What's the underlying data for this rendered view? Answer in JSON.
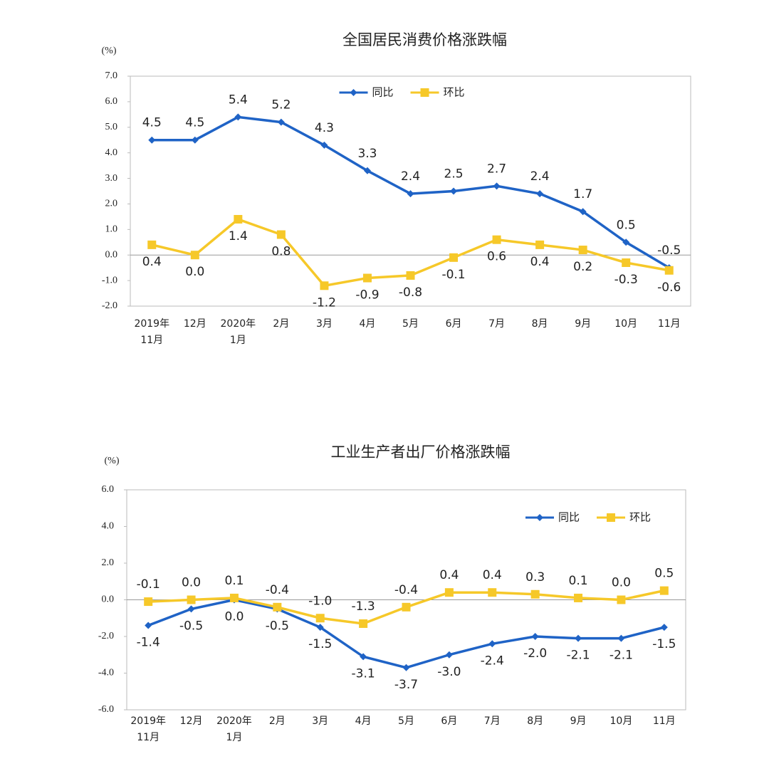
{
  "chart_data": [
    {
      "type": "line",
      "title": "全国居民消费价格涨跌幅",
      "ylabel": "(%)",
      "categories": [
        "2019年\n11月",
        "12月",
        "2020年\n1月",
        "2月",
        "3月",
        "4月",
        "5月",
        "6月",
        "7月",
        "8月",
        "9月",
        "10月",
        "11月"
      ],
      "series": [
        {
          "name": "同比",
          "color": "#1f63c6",
          "marker": "diamond",
          "values": [
            4.5,
            4.5,
            5.4,
            5.2,
            4.3,
            3.3,
            2.4,
            2.5,
            2.7,
            2.4,
            1.7,
            0.5,
            -0.5
          ],
          "value_labels": [
            "4.5",
            "4.5",
            "5.4",
            "5.2",
            "4.3",
            "3.3",
            "2.4",
            "2.5",
            "2.7",
            "2.4",
            "1.7",
            "0.5",
            "-0.5"
          ]
        },
        {
          "name": "环比",
          "color": "#f6c829",
          "marker": "square",
          "values": [
            0.4,
            0.0,
            1.4,
            0.8,
            -1.2,
            -0.9,
            -0.8,
            -0.1,
            0.6,
            0.4,
            0.2,
            -0.3,
            -0.6
          ],
          "value_labels": [
            "0.4",
            "0.0",
            "1.4",
            "0.8",
            "-1.2",
            "-0.9",
            "-0.8",
            "-0.1",
            "0.6",
            "0.4",
            "0.2",
            "-0.3",
            "-0.6"
          ]
        }
      ],
      "ylim": [
        -2,
        7
      ],
      "yticks": [
        {
          "value": -2,
          "label": "-2.0"
        },
        {
          "value": -1,
          "label": "-1.0"
        },
        {
          "value": 0,
          "label": "0.0"
        },
        {
          "value": 1,
          "label": "1.0"
        },
        {
          "value": 2,
          "label": "2.0"
        },
        {
          "value": 3,
          "label": "3.0"
        },
        {
          "value": 4,
          "label": "4.0"
        },
        {
          "value": 5,
          "label": "5.0"
        },
        {
          "value": 6,
          "label": "6.0"
        },
        {
          "value": 7,
          "label": "7.0"
        }
      ],
      "grid": false,
      "legend": "upper center"
    },
    {
      "type": "line",
      "title": "工业生产者出厂价格涨跌幅",
      "ylabel": "(%)",
      "categories": [
        "2019年\n11月",
        "12月",
        "2020年\n1月",
        "2月",
        "3月",
        "4月",
        "5月",
        "6月",
        "7月",
        "8月",
        "9月",
        "10月",
        "11月"
      ],
      "series": [
        {
          "name": "同比",
          "color": "#1f63c6",
          "marker": "diamond",
          "values": [
            -1.4,
            -0.5,
            0.0,
            -0.5,
            -1.5,
            -3.1,
            -3.7,
            -3.0,
            -2.4,
            -2.0,
            -2.1,
            -2.1,
            -1.5
          ],
          "value_labels": [
            "-1.4",
            "-0.5",
            "0.0",
            "-0.5",
            "-1.5",
            "-3.1",
            "-3.7",
            "-3.0",
            "-2.4",
            "-2.0",
            "-2.1",
            "-2.1",
            "-1.5"
          ]
        },
        {
          "name": "环比",
          "color": "#f6c829",
          "marker": "square",
          "values": [
            -0.1,
            0.0,
            0.1,
            -0.4,
            -1.0,
            -1.3,
            -0.4,
            0.4,
            0.4,
            0.3,
            0.1,
            0.0,
            0.5
          ],
          "value_labels": [
            "-0.1",
            "0.0",
            "0.1",
            "-0.4",
            "-1.0",
            "-1.3",
            "-0.4",
            "0.4",
            "0.4",
            "0.3",
            "0.1",
            "0.0",
            "0.5"
          ]
        }
      ],
      "ylim": [
        -6,
        6
      ],
      "yticks": [
        {
          "value": -6,
          "label": "-6.0"
        },
        {
          "value": -4,
          "label": "-4.0"
        },
        {
          "value": -2,
          "label": "-2.0"
        },
        {
          "value": 0,
          "label": "0.0"
        },
        {
          "value": 2,
          "label": "2.0"
        },
        {
          "value": 4,
          "label": "4.0"
        },
        {
          "value": 6,
          "label": "6.0"
        }
      ],
      "grid": false,
      "legend": "upper right"
    }
  ]
}
